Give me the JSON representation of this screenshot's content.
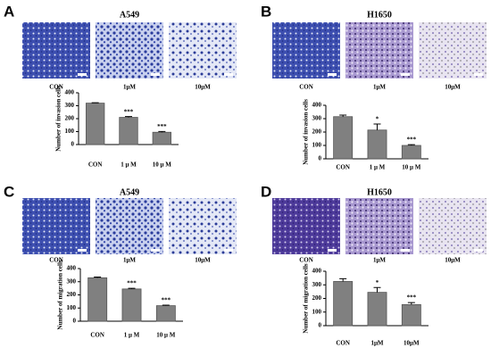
{
  "chart_data": [
    {
      "type": "bar",
      "panel": "A",
      "title": "A549",
      "image_labels": [
        "CON",
        "1μM",
        "10μM"
      ],
      "ylabel": "Number of invasion cells",
      "categories": [
        "CON",
        "1 μ M",
        "10 μ M"
      ],
      "values": [
        320,
        210,
        95
      ],
      "errors": [
        3,
        6,
        6
      ],
      "significance": [
        null,
        "***",
        "***"
      ],
      "ylim": [
        0,
        400
      ],
      "yticks": [
        0,
        100,
        200,
        300,
        400
      ],
      "color": "#808080"
    },
    {
      "type": "bar",
      "panel": "B",
      "title": "H1650",
      "image_labels": [
        "CON",
        "1μM",
        "10μM"
      ],
      "ylabel": "Number of invasion cells",
      "categories": [
        "CON",
        "1 μ M",
        "10 μ M"
      ],
      "values": [
        315,
        215,
        100
      ],
      "errors": [
        12,
        45,
        6
      ],
      "significance": [
        null,
        "*",
        "***"
      ],
      "ylim": [
        0,
        400
      ],
      "yticks": [
        0,
        100,
        200,
        300,
        400
      ],
      "color": "#808080"
    },
    {
      "type": "bar",
      "panel": "C",
      "title": "A549",
      "image_labels": [
        "CON",
        "1μM",
        "10μM"
      ],
      "ylabel": "Number of migration cells",
      "categories": [
        "CON",
        "1 μ M",
        "10 μ M"
      ],
      "values": [
        330,
        245,
        118
      ],
      "errors": [
        6,
        5,
        4
      ],
      "significance": [
        null,
        "***",
        "***"
      ],
      "ylim": [
        0,
        400
      ],
      "yticks": [
        0,
        100,
        200,
        300,
        400
      ],
      "color": "#808080"
    },
    {
      "type": "bar",
      "panel": "D",
      "title": "H1650",
      "image_labels": [
        "CON",
        "1μM",
        "10μM"
      ],
      "ylabel": "Number of migration cells",
      "categories": [
        "CON",
        "1μM",
        "10μM"
      ],
      "values": [
        325,
        245,
        155
      ],
      "errors": [
        20,
        35,
        15
      ],
      "significance": [
        null,
        "*",
        "***"
      ],
      "ylim": [
        0,
        400
      ],
      "yticks": [
        0,
        100,
        200,
        300,
        400
      ],
      "color": "#808080"
    }
  ]
}
